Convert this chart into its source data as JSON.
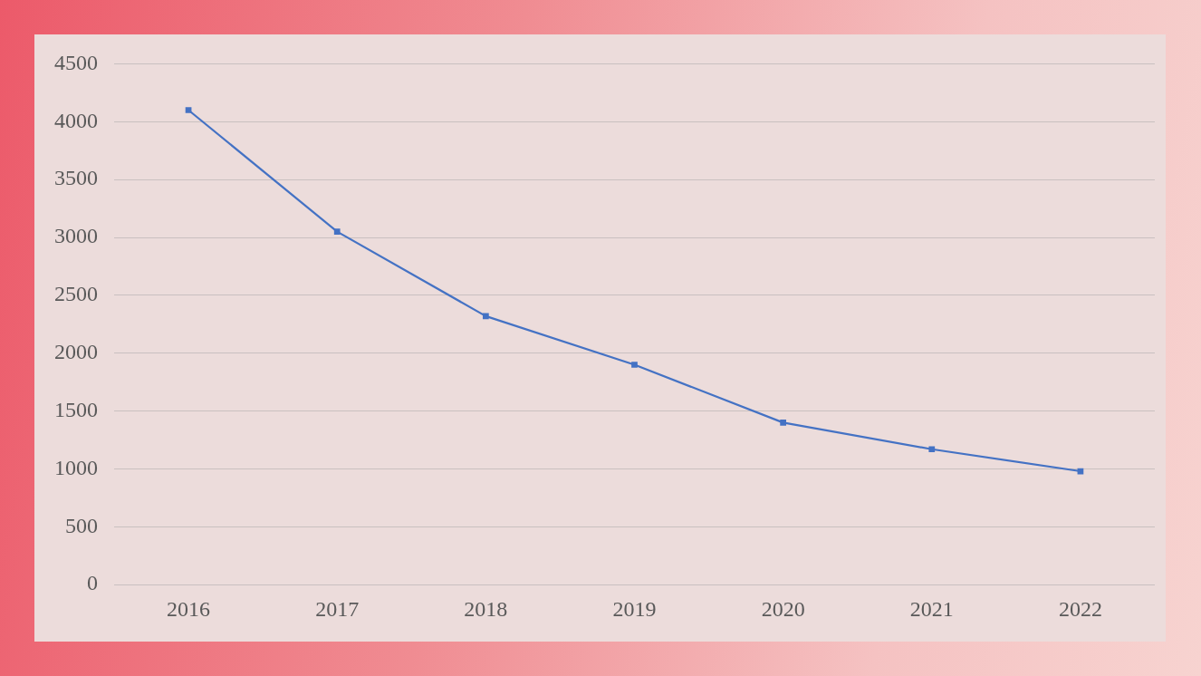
{
  "chart_data": {
    "type": "line",
    "categories": [
      "2016",
      "2017",
      "2018",
      "2019",
      "2020",
      "2021",
      "2022"
    ],
    "series": [
      {
        "color": "#4472c4",
        "values": [
          4100,
          3050,
          2320,
          1900,
          1400,
          1170,
          980
        ]
      }
    ],
    "ylim": [
      0,
      4500
    ],
    "yticks": [
      0,
      500,
      1000,
      1500,
      2000,
      2500,
      3000,
      3500,
      4000,
      4500
    ],
    "grid": "y",
    "legend": false,
    "marker": "square",
    "line_style": "solid"
  }
}
